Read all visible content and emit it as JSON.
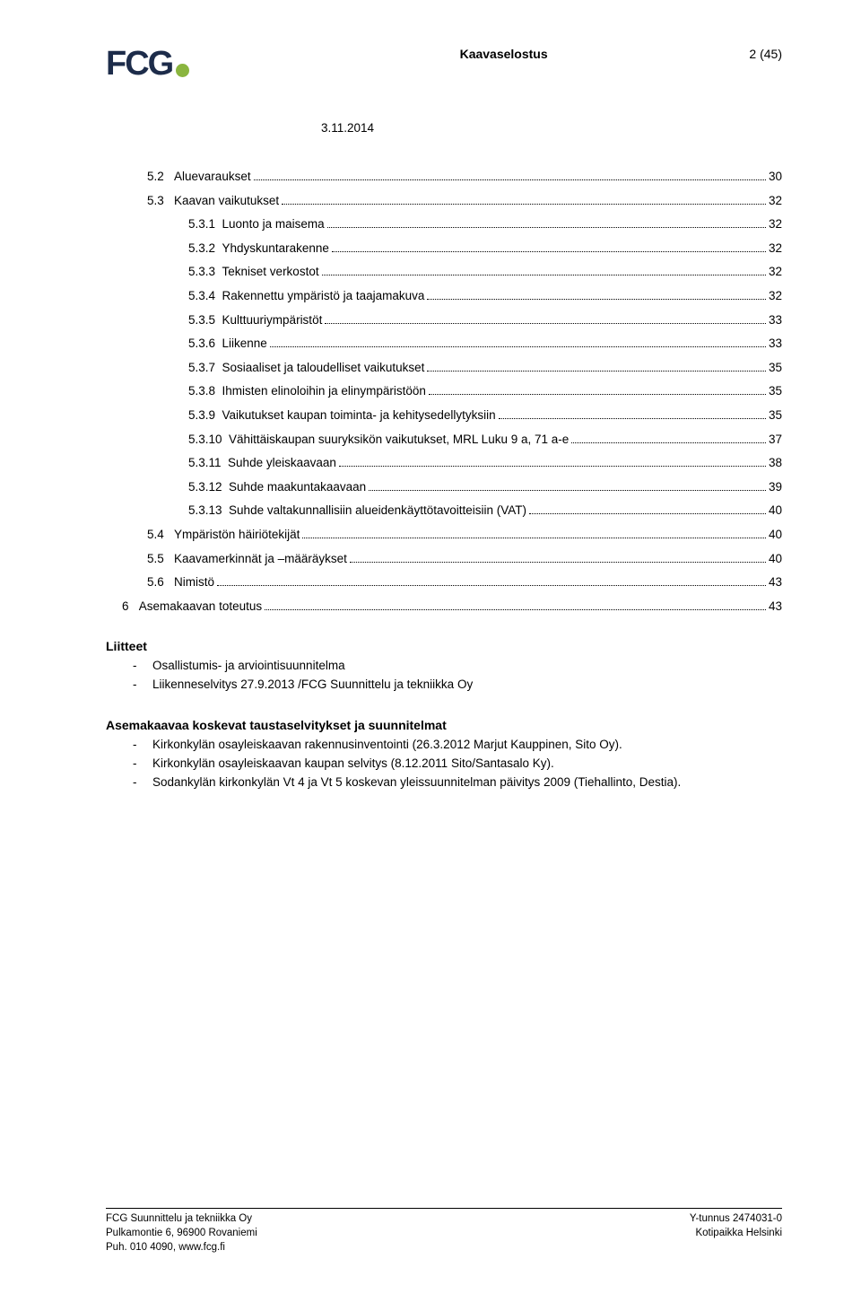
{
  "header": {
    "logo_text": "FCG",
    "center": "Kaavaselostus",
    "right": "2 (45)",
    "date": "3.11.2014"
  },
  "colors": {
    "logo_text": "#1d2c4a",
    "logo_dot": "#8ab53f",
    "text": "#000000",
    "background": "#ffffff"
  },
  "toc": [
    {
      "indent": 1,
      "num": "5.2",
      "label": "Aluevaraukset",
      "page": "30"
    },
    {
      "indent": 1,
      "num": "5.3",
      "label": "Kaavan vaikutukset",
      "page": "32"
    },
    {
      "indent": 2,
      "num": "5.3.1",
      "label": "Luonto ja maisema",
      "page": "32"
    },
    {
      "indent": 2,
      "num": "5.3.2",
      "label": "Yhdyskuntarakenne",
      "page": "32"
    },
    {
      "indent": 2,
      "num": "5.3.3",
      "label": "Tekniset verkostot",
      "page": "32"
    },
    {
      "indent": 2,
      "num": "5.3.4",
      "label": "Rakennettu ympäristö ja taajamakuva",
      "page": "32"
    },
    {
      "indent": 2,
      "num": "5.3.5",
      "label": "Kulttuuriympäristöt",
      "page": "33"
    },
    {
      "indent": 2,
      "num": "5.3.6",
      "label": "Liikenne",
      "page": "33"
    },
    {
      "indent": 2,
      "num": "5.3.7",
      "label": "Sosiaaliset ja taloudelliset vaikutukset",
      "page": "35"
    },
    {
      "indent": 2,
      "num": "5.3.8",
      "label": "Ihmisten elinoloihin ja elinympäristöön",
      "page": "35"
    },
    {
      "indent": 2,
      "num": "5.3.9",
      "label": "Vaikutukset kaupan toiminta- ja kehitysedellytyksiin",
      "page": "35"
    },
    {
      "indent": 2,
      "num": "5.3.10",
      "label": "Vähittäiskaupan suuryksikön vaikutukset, MRL Luku 9 a, 71 a-e",
      "page": "37"
    },
    {
      "indent": 2,
      "num": "5.3.11",
      "label": "Suhde yleiskaavaan",
      "page": "38"
    },
    {
      "indent": 2,
      "num": "5.3.12",
      "label": "Suhde maakuntakaavaan",
      "page": "39"
    },
    {
      "indent": 2,
      "num": "5.3.13",
      "label": "Suhde valtakunnallisiin alueidenkäyttötavoitteisiin (VAT)",
      "page": "40"
    },
    {
      "indent": 1,
      "num": "5.4",
      "label": "Ympäristön häiriötekijät",
      "page": "40"
    },
    {
      "indent": 1,
      "num": "5.5",
      "label": "Kaavamerkinnät ja –määräykset",
      "page": "40"
    },
    {
      "indent": 1,
      "num": "5.6",
      "label": "Nimistö",
      "page": "43"
    },
    {
      "indent": 0,
      "num": "6",
      "label": "Asemakaavan toteutus",
      "page": "43"
    }
  ],
  "attachments": {
    "title": "Liitteet",
    "items": [
      "Osallistumis- ja arviointisuunnitelma",
      "Liikenneselvitys 27.9.2013 /FCG Suunnittelu ja tekniikka Oy"
    ]
  },
  "studies": {
    "title": "Asemakaavaa koskevat taustaselvitykset ja suunnitelmat",
    "items": [
      "Kirkonkylän osayleiskaavan rakennusinventointi (26.3.2012 Marjut Kauppinen, Sito Oy).",
      "Kirkonkylän osayleiskaavan kaupan selvitys (8.12.2011 Sito/Santasalo Ky).",
      "Sodankylän kirkonkylän Vt 4 ja Vt 5 koskevan yleissuunnitelman päivitys 2009 (Tiehallinto, Destia)."
    ]
  },
  "footer": {
    "left": [
      "FCG Suunnittelu ja tekniikka Oy",
      "Pulkamontie 6, 96900 Rovaniemi",
      "Puh. 010 4090, www.fcg.fi"
    ],
    "right": [
      "Y-tunnus 2474031-0",
      "Kotipaikka Helsinki"
    ]
  }
}
